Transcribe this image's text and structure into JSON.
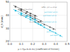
{
  "chart_data": {
    "type": "scatter",
    "xlabel": "µ = f(µ₀·k₁·k₂·k₃) [coefficient of friction]",
    "ylabel": "d_h [mm]",
    "xlim": [
      0.0,
      0.5
    ],
    "ylim": [
      20,
      50
    ],
    "xticks": [
      {
        "value": 0.0,
        "label": "0.0"
      },
      0.1,
      0.2,
      0.3,
      0.4,
      0.5
    ],
    "yticks": [
      20,
      30,
      40,
      50
    ],
    "grid": true,
    "series": [
      {
        "color": "#555555",
        "marker": "square",
        "x": [
          0.05,
          0.1,
          0.15,
          0.18,
          0.22
        ],
        "values": [
          46.5,
          44.5,
          42.5,
          41.2,
          39.5
        ],
        "fit_x": [
          0.03,
          0.24
        ],
        "fit_y": [
          47.5,
          39.0
        ]
      },
      {
        "color": "#555555",
        "marker": "circle",
        "x": [
          0.1,
          0.14,
          0.18,
          0.22,
          0.27
        ],
        "values": [
          43.5,
          41.5,
          39.5,
          37.8,
          35.5
        ],
        "fit_x": [
          0.07,
          0.29
        ],
        "fit_y": [
          44.5,
          35.0
        ]
      },
      {
        "color": "#555555",
        "marker": "triangle",
        "x": [
          0.2,
          0.25,
          0.3,
          0.35,
          0.38
        ],
        "values": [
          37.5,
          35.0,
          33.0,
          31.0,
          29.5
        ],
        "fit_x": [
          0.17,
          0.4
        ],
        "fit_y": [
          38.5,
          29.0
        ]
      },
      {
        "color": "#22bbdd",
        "marker": "square",
        "x": [
          0.05,
          0.1,
          0.15,
          0.18,
          0.22
        ],
        "values": [
          43.5,
          41.5,
          39.5,
          38.2,
          36.5
        ],
        "fit_x": [
          0.03,
          0.24
        ],
        "fit_y": [
          44.5,
          36.0
        ]
      },
      {
        "color": "#22bbdd",
        "marker": "circle",
        "x": [
          0.1,
          0.14,
          0.18,
          0.22,
          0.27
        ],
        "values": [
          40.5,
          38.5,
          36.5,
          34.8,
          32.5
        ],
        "fit_x": [
          0.07,
          0.29
        ],
        "fit_y": [
          41.5,
          32.0
        ]
      },
      {
        "color": "#22bbdd",
        "marker": "triangle",
        "x": [
          0.25,
          0.3,
          0.35,
          0.4,
          0.44
        ],
        "values": [
          33.5,
          31.0,
          28.5,
          26.5,
          24.5
        ],
        "fit_x": [
          0.22,
          0.46
        ],
        "fit_y": [
          34.5,
          23.5
        ]
      }
    ],
    "annotations": [
      {
        "text": "Teflon, y(x) = +0.52",
        "x": 0.275,
        "y": 46.0,
        "color": "#555555"
      },
      {
        "text": "Teflon, y(x)=+0.52",
        "x": 0.07,
        "y": 44.2,
        "color": "#555555"
      },
      {
        "text": "rolling oil y(x)=-0.21",
        "x": 0.09,
        "y": 39.8,
        "color": "#555555"
      },
      {
        "text": "dry y(x)=-0.88",
        "x": 0.17,
        "y": 35.0,
        "color": "#555555"
      },
      {
        "text": "µ=0.0444 r=0.21",
        "x": 0.29,
        "y": 39.5,
        "color": "#22bbdd"
      },
      {
        "text": "µ=0.0444 r=0.21",
        "x": 0.29,
        "y": 34.5,
        "color": "#22bbdd"
      },
      {
        "text": "µ=0.0444",
        "x": 0.32,
        "y": 27.5,
        "color": "#22bbdd"
      },
      {
        "text": "µ=0.0444",
        "x": 0.35,
        "y": 24.8,
        "color": "#22bbdd"
      },
      {
        "text": "µ=0.0444 r=0.21",
        "x": 0.3,
        "y": 42.5,
        "color": "#22bbdd"
      }
    ]
  }
}
